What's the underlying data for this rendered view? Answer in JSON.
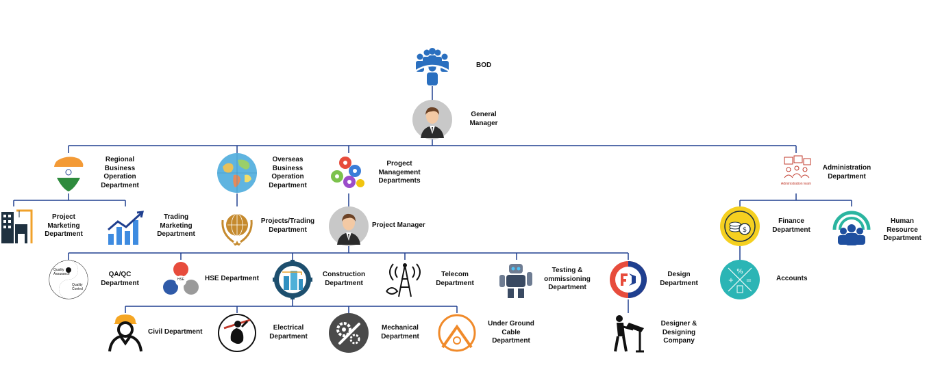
{
  "nodes": {
    "bod": {
      "label": "BOD",
      "icon": "board-people-icon"
    },
    "gm": {
      "label": "General\nManager",
      "icon": "manager-avatar-icon"
    },
    "regional": {
      "label": "Regional\nBusiness\nOperation\nDepartment",
      "icon": "india-map-icon"
    },
    "overseas": {
      "label": "Overseas\nBusiness\nOperation\nDepartment",
      "icon": "world-map-icon"
    },
    "pmd": {
      "label": "Progect\nManagement\nDepartments",
      "icon": "gears-icon"
    },
    "admin": {
      "label": "Administration\nDepartment",
      "icon": "administration-team-icon",
      "caption": "Administration team"
    },
    "proj_marketing": {
      "label": "Project\nMarketing\nDepartment",
      "icon": "building-crane-icon"
    },
    "trading_marketing": {
      "label": "Trading\nMarketing\nDepartment",
      "icon": "growth-chart-icon"
    },
    "projects_trading": {
      "label": "Projects/Trading\nDepartment",
      "icon": "globe-laurel-icon"
    },
    "pm": {
      "label": "Project Manager",
      "icon": "manager-avatar-icon"
    },
    "finance": {
      "label": "Finance\nDepartment",
      "icon": "coins-icon"
    },
    "hr": {
      "label": "Human Resource\nDepartment",
      "icon": "team-signal-icon"
    },
    "accounts": {
      "label": "Accounts",
      "icon": "calculator-icon"
    },
    "qaqc": {
      "label": "QA/QC\nDepartment",
      "icon": "yin-yang-icon",
      "texts": [
        "Quality Assurance",
        "Quality Control"
      ]
    },
    "hse": {
      "label": "HSE Department",
      "icon": "hse-triangle-icon",
      "texts": [
        "HSE"
      ]
    },
    "construction": {
      "label": "Construction\nDepartment",
      "icon": "construction-gear-icon"
    },
    "telecom": {
      "label": "Telecom\nDepartment",
      "icon": "telecom-tower-icon"
    },
    "testing": {
      "label": "Testing &\nommissioning\nDepartment",
      "icon": "robot-icon"
    },
    "design": {
      "label": "Design\nDepartment",
      "icon": "design-gear-icon"
    },
    "civil": {
      "label": "Civil Department",
      "icon": "hardhat-worker-icon"
    },
    "electrical": {
      "label": "Electrical\nDepartment",
      "icon": "electrician-icon"
    },
    "mechanical": {
      "label": "Mechanical\nDepartment",
      "icon": "wrench-gear-icon"
    },
    "underground": {
      "label": "Under Ground\nCable\nDepartment",
      "icon": "tunnel-icon"
    },
    "designer": {
      "label": "Designer &\nDesigning\nCompany",
      "icon": "drafting-person-icon"
    }
  },
  "colors": {
    "line": "#1f3f8f",
    "bod_blue": "#2a6fbf",
    "admin_red": "#c0392b",
    "finance_yellow": "#f5d020",
    "teal": "#2bb5b5",
    "orange": "#f08a2a"
  }
}
